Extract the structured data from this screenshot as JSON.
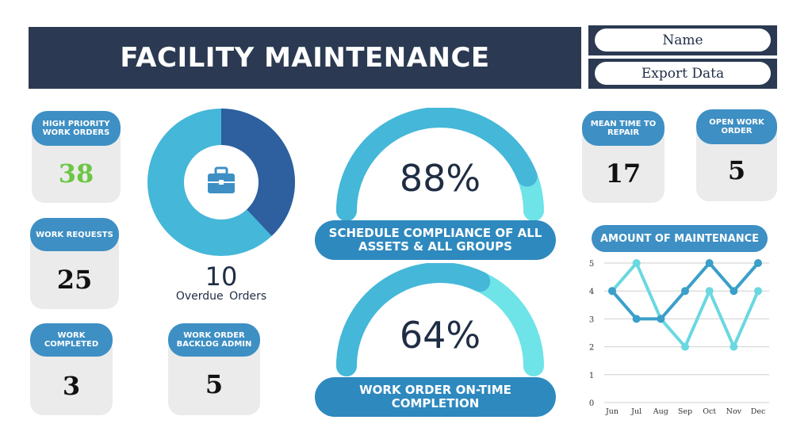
{
  "header": {
    "title": "FACILITY MAINTENANCE",
    "name_button": "Name",
    "export_button": "Export Data"
  },
  "cards": {
    "high_priority": {
      "label": "HIGH PRIORITY WORK ORDERS",
      "value": "38",
      "value_color": "#6cc644"
    },
    "work_requests": {
      "label": "WORK REQUESTS",
      "value": "25"
    },
    "work_completed": {
      "label": "WORK COMPLETED",
      "value": "3"
    },
    "backlog_admin": {
      "label": "WORK ORDER BACKLOG ADMIN",
      "value": "5"
    },
    "mean_time_repair": {
      "label": "MEAN TIME TO REPAIR",
      "value": "17"
    },
    "open_work_order": {
      "label": "OPEN WORK ORDER",
      "value": "5"
    }
  },
  "donut": {
    "value": "10",
    "label": "Overdue Orders",
    "fraction": 0.38,
    "color_main": "#45b7d8",
    "color_slice": "#2e5f9e",
    "icon": "briefcase-icon"
  },
  "gauges": [
    {
      "value_text": "88%",
      "fraction": 0.88,
      "label": "SCHEDULE COMPLIANCE OF ALL ASSETS & ALL GROUPS"
    },
    {
      "value_text": "64%",
      "fraction": 0.64,
      "label": "WORK ORDER ON-TIME COMPLETION"
    }
  ],
  "colors": {
    "navy": "#2b3a52",
    "pill": "#3d8fc4",
    "gauge_fill": "#45b7d8",
    "gauge_rest": "#6ee3e8"
  },
  "chart_data": {
    "type": "line",
    "title": "AMOUNT OF MAINTENANCE",
    "categories": [
      "Jun",
      "Jul",
      "Aug",
      "Sep",
      "Oct",
      "Nov",
      "Dec"
    ],
    "series": [
      {
        "values": [
          4,
          3,
          3,
          4,
          5,
          4,
          5
        ],
        "color": "#3a9fc9"
      },
      {
        "values": [
          4,
          5,
          3,
          2,
          4,
          2,
          4
        ],
        "color": "#6ad8e0"
      }
    ],
    "ylim": [
      0,
      5
    ],
    "yticks": [
      "0",
      "1",
      "2",
      "3",
      "4",
      "5"
    ],
    "grid": true
  }
}
